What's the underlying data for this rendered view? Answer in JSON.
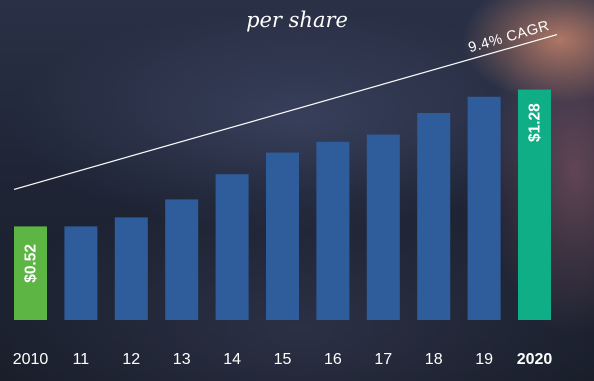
{
  "subtitle": "per share",
  "chart_data": {
    "type": "bar",
    "categories": [
      "2010",
      "11",
      "12",
      "13",
      "14",
      "15",
      "16",
      "17",
      "18",
      "19",
      "2020"
    ],
    "values": [
      0.52,
      0.52,
      0.57,
      0.67,
      0.81,
      0.93,
      0.99,
      1.03,
      1.15,
      1.24,
      1.28
    ],
    "highlight_colors": {
      "2010": "#5db544",
      "2020": "#0fae86"
    },
    "bar_color": "#2f5d9c",
    "value_labels": {
      "2010": "$0.52",
      "2020": "$1.28"
    },
    "bold_categories": [
      "2020"
    ],
    "trend_label": "9.4% CAGR",
    "ylim": [
      0,
      1.5
    ],
    "grid": false
  }
}
